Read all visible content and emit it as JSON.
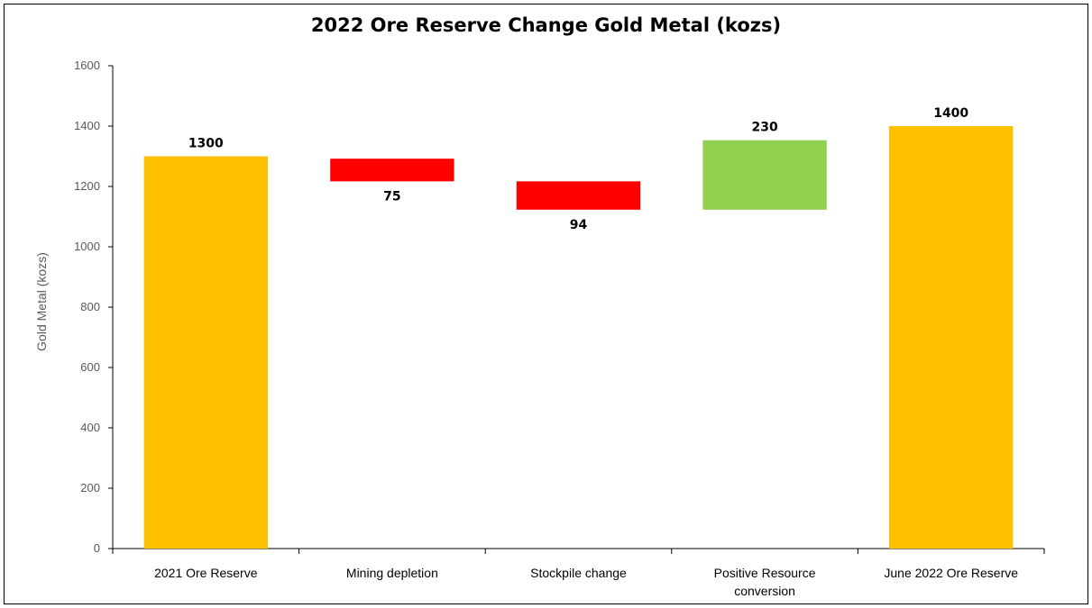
{
  "chart_data": {
    "type": "bar",
    "subtype": "waterfall",
    "title": "2022 Ore Reserve Change Gold Metal (kozs)",
    "ylabel": "Gold Metal (kozs)",
    "xlabel": "",
    "ylim": [
      0,
      1600
    ],
    "yticks": [
      0,
      200,
      400,
      600,
      800,
      1000,
      1200,
      1400,
      1600
    ],
    "grid": false,
    "legend": "none",
    "categories": [
      [
        "2021 Ore Reserve"
      ],
      [
        "Mining depletion"
      ],
      [
        "Stockpile change"
      ],
      [
        "Positive Resource",
        "conversion"
      ],
      [
        "June 2022 Ore Reserve"
      ]
    ],
    "bars": [
      {
        "kind": "total",
        "start": 0,
        "end": 1300,
        "label": "1300",
        "color": "#FFC000"
      },
      {
        "kind": "decrease",
        "start": 1292,
        "end": 1217,
        "label": "75",
        "color": "#FF0000"
      },
      {
        "kind": "decrease",
        "start": 1217,
        "end": 1123,
        "label": "94",
        "color": "#FF0000"
      },
      {
        "kind": "increase",
        "start": 1123,
        "end": 1353,
        "label": "230",
        "color": "#92D050"
      },
      {
        "kind": "total",
        "start": 0,
        "end": 1400,
        "label": "1400",
        "color": "#FFC000"
      }
    ]
  }
}
